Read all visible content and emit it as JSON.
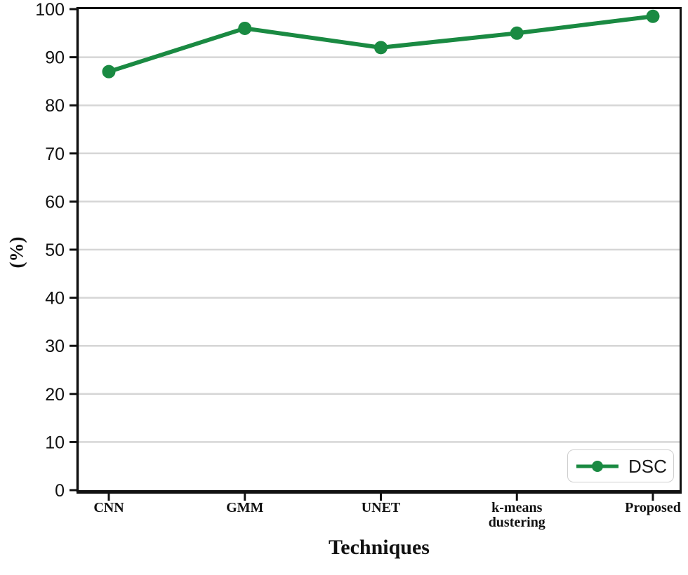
{
  "chart_data": {
    "type": "line",
    "categories": [
      "CNN",
      "GMM",
      "UNET",
      "k-means\ndustering",
      "Proposed"
    ],
    "series": [
      {
        "name": "DSC",
        "values": [
          87,
          96,
          92,
          95,
          98.5
        ],
        "color": "#1a8a42"
      }
    ],
    "title": "",
    "xlabel": "Techniques",
    "ylabel": "(%)",
    "ylim": [
      0,
      100
    ],
    "yticks": [
      0,
      10,
      20,
      30,
      40,
      50,
      60,
      70,
      80,
      90,
      100
    ],
    "grid": "horizontal",
    "gridline_color": "#d6d6d6",
    "spine_color": "#111111",
    "legend_position": "lower right",
    "legend_entries": [
      "DSC"
    ]
  }
}
